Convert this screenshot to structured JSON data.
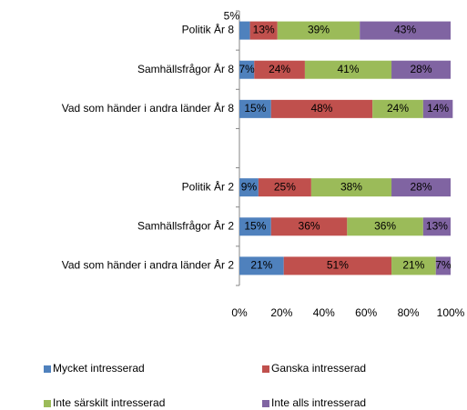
{
  "chart_data": {
    "type": "stacked-bar-horizontal",
    "categories": [
      "Politik År 8",
      "Samhällsfrågor År 8",
      "Vad som händer i andra länder År 8",
      null,
      "Politik År 2",
      "Samhällsfrågor År 2",
      "Vad som händer i andra länder År 2"
    ],
    "series": [
      {
        "name": "Mycket intresserad",
        "color": "#4f81bd",
        "values": [
          5,
          7,
          15,
          null,
          9,
          15,
          21
        ],
        "value_labels": [
          "5%",
          "7%",
          "15%",
          null,
          "9%",
          "15%",
          "21%"
        ]
      },
      {
        "name": "Ganska intresserad",
        "color": "#c0504d",
        "values": [
          13,
          24,
          48,
          null,
          25,
          36,
          51
        ],
        "value_labels": [
          "13%",
          "24%",
          "48%",
          null,
          "25%",
          "36%",
          "51%"
        ]
      },
      {
        "name": "Inte särskilt intresserad",
        "color": "#9bbb59",
        "values": [
          39,
          41,
          24,
          null,
          38,
          36,
          21
        ],
        "value_labels": [
          "39%",
          "41%",
          "24%",
          null,
          "38%",
          "36%",
          "21%"
        ]
      },
      {
        "name": "Inte alls intresserad",
        "color": "#8064a2",
        "values": [
          43,
          28,
          14,
          null,
          28,
          13,
          7
        ],
        "value_labels": [
          "43%",
          "28%",
          "14%",
          null,
          "28%",
          "13%",
          "7%"
        ]
      }
    ],
    "xlim": [
      0,
      100
    ],
    "xticks": [
      {
        "value": 0,
        "label": "0%"
      },
      {
        "value": 20,
        "label": "20%"
      },
      {
        "value": 40,
        "label": "40%"
      },
      {
        "value": 60,
        "label": "60%"
      },
      {
        "value": 80,
        "label": "80%"
      },
      {
        "value": 100,
        "label": "100%"
      }
    ],
    "legend": "bottom"
  }
}
